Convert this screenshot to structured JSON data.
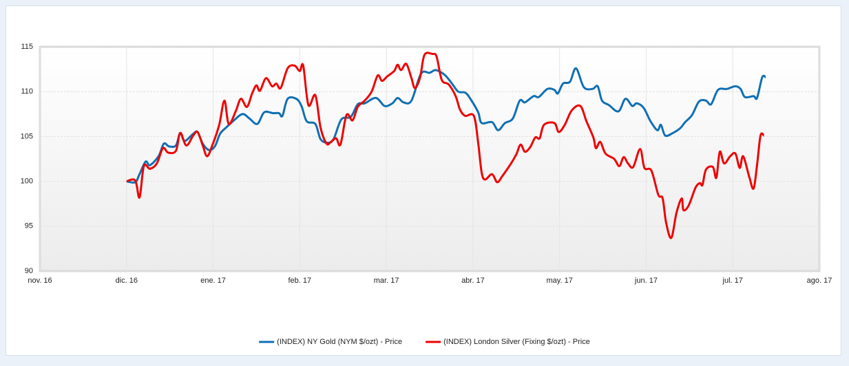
{
  "chart_data": {
    "type": "line",
    "xlim": [
      0,
      9
    ],
    "xticks": [
      {
        "value": 0,
        "label": "nov. 16"
      },
      {
        "value": 1,
        "label": "dic. 16"
      },
      {
        "value": 2,
        "label": "ene. 17"
      },
      {
        "value": 3,
        "label": "feb. 17"
      },
      {
        "value": 4,
        "label": "mar. 17"
      },
      {
        "value": 5,
        "label": "abr. 17"
      },
      {
        "value": 6,
        "label": "may. 17"
      },
      {
        "value": 7,
        "label": "jun. 17"
      },
      {
        "value": 8,
        "label": "jul. 17"
      },
      {
        "value": 9,
        "label": "ago. 17"
      }
    ],
    "ylim": [
      90,
      115
    ],
    "yticks": [
      90,
      95,
      100,
      105,
      110,
      115
    ],
    "grid": true,
    "legend": "bottom",
    "series": [
      {
        "name": "(INDEX) NY Gold (NYM $/ozt) - Price",
        "color": "#0f6fb4",
        "x": [
          1.0,
          1.1,
          1.15,
          1.22,
          1.27,
          1.37,
          1.43,
          1.49,
          1.57,
          1.62,
          1.67,
          1.77,
          1.82,
          1.88,
          1.95,
          2.02,
          2.08,
          2.15,
          2.24,
          2.34,
          2.42,
          2.51,
          2.59,
          2.69,
          2.76,
          2.8,
          2.86,
          2.96,
          3.02,
          3.08,
          3.18,
          3.24,
          3.32,
          3.39,
          3.48,
          3.59,
          3.67,
          3.75,
          3.88,
          3.98,
          4.07,
          4.13,
          4.2,
          4.29,
          4.4,
          4.5,
          4.57,
          4.67,
          4.75,
          4.83,
          4.91,
          4.97,
          5.06,
          5.1,
          5.22,
          5.29,
          5.37,
          5.46,
          5.54,
          5.6,
          5.7,
          5.76,
          5.86,
          5.94,
          5.98,
          6.04,
          6.12,
          6.19,
          6.28,
          6.38,
          6.44,
          6.49,
          6.57,
          6.68,
          6.76,
          6.84,
          6.89,
          6.97,
          7.05,
          7.13,
          7.17,
          7.22,
          7.31,
          7.39,
          7.45,
          7.53,
          7.61,
          7.69,
          7.75,
          7.83,
          7.93,
          8.03,
          8.09,
          8.14,
          8.24,
          8.28,
          8.34,
          8.38
        ],
        "values": [
          100,
          99.9,
          100.8,
          102.2,
          101.8,
          102.8,
          104.2,
          103.9,
          104,
          105.4,
          104.5,
          105.3,
          105.5,
          104.2,
          103.5,
          103.9,
          105.3,
          106,
          106.8,
          107.5,
          107.0,
          106.4,
          107.7,
          107.6,
          107.6,
          107.3,
          109.2,
          109.2,
          108.4,
          106.7,
          106.4,
          104.7,
          104.3,
          104.7,
          106.9,
          107.2,
          108.6,
          108.7,
          109.3,
          108.4,
          108.7,
          109.3,
          108.8,
          109.0,
          112.0,
          112.1,
          112.4,
          111.9,
          111.0,
          110.0,
          109.9,
          109.2,
          107.7,
          106.5,
          106.6,
          105.7,
          106.5,
          107.0,
          109.0,
          108.8,
          109.5,
          109.4,
          110.3,
          110.2,
          109.8,
          110.9,
          111.1,
          112.6,
          110.5,
          110.3,
          110.6,
          109.0,
          108.5,
          107.8,
          109.2,
          108.4,
          108.7,
          108.2,
          106.7,
          105.7,
          106.3,
          105.1,
          105.4,
          105.9,
          106.6,
          107.4,
          108.9,
          109.0,
          108.6,
          110.2,
          110.3,
          110.6,
          110.3,
          109.4,
          109.5,
          109.3,
          111.6,
          111.6
        ]
      },
      {
        "name": "(INDEX) London Silver (Fixing $/ozt) - Price",
        "color": "#ee0000",
        "x": [
          1.0,
          1.1,
          1.15,
          1.2,
          1.27,
          1.35,
          1.42,
          1.48,
          1.57,
          1.62,
          1.69,
          1.77,
          1.82,
          1.88,
          1.93,
          1.99,
          2.07,
          2.13,
          2.18,
          2.26,
          2.32,
          2.39,
          2.45,
          2.5,
          2.54,
          2.61,
          2.68,
          2.73,
          2.78,
          2.86,
          2.94,
          3.0,
          3.04,
          3.1,
          3.18,
          3.24,
          3.31,
          3.36,
          3.42,
          3.47,
          3.54,
          3.61,
          3.67,
          3.75,
          3.83,
          3.9,
          3.95,
          4.01,
          4.09,
          4.13,
          4.17,
          4.23,
          4.29,
          4.33,
          4.39,
          4.44,
          4.53,
          4.58,
          4.64,
          4.72,
          4.8,
          4.85,
          4.91,
          5.01,
          5.06,
          5.1,
          5.14,
          5.22,
          5.28,
          5.34,
          5.44,
          5.5,
          5.55,
          5.6,
          5.66,
          5.72,
          5.77,
          5.82,
          5.94,
          5.99,
          6.06,
          6.14,
          6.24,
          6.31,
          6.39,
          6.42,
          6.47,
          6.53,
          6.63,
          6.69,
          6.74,
          6.79,
          6.85,
          6.93,
          6.98,
          7.06,
          7.14,
          7.19,
          7.23,
          7.29,
          7.35,
          7.41,
          7.43,
          7.49,
          7.57,
          7.62,
          7.65,
          7.69,
          7.77,
          7.81,
          7.85,
          7.9,
          7.97,
          8.03,
          8.08,
          8.12,
          8.19,
          8.24,
          8.28,
          8.32,
          8.36
        ],
        "values": [
          100,
          100.1,
          98.2,
          101.7,
          101.4,
          102,
          103.7,
          103.2,
          103.4,
          105.4,
          104.0,
          105.1,
          105.5,
          104.0,
          102.8,
          104.0,
          106.3,
          109.0,
          106.4,
          107.8,
          109.2,
          108.3,
          109.8,
          110.7,
          110.1,
          111.5,
          110.6,
          110.9,
          110.4,
          112.6,
          112.9,
          112.3,
          112.9,
          108.5,
          109.6,
          106.0,
          104.2,
          104.4,
          104.8,
          104.1,
          107.4,
          106.8,
          108.3,
          109.0,
          110.0,
          111.8,
          111.2,
          111.7,
          112.3,
          113.0,
          112.4,
          113.1,
          111.5,
          110.4,
          111.6,
          114.1,
          114.2,
          113.9,
          111.3,
          110.8,
          109.5,
          108.0,
          107.3,
          107.3,
          104.3,
          101.0,
          100.2,
          100.8,
          99.9,
          100.6,
          102.0,
          103.0,
          104.1,
          103.3,
          103.8,
          104.9,
          104.8,
          106.3,
          106.5,
          105.5,
          106.3,
          107.9,
          108.4,
          106.7,
          104.9,
          103.7,
          104.4,
          103.1,
          102.5,
          101.7,
          102.7,
          102.0,
          101.6,
          103.6,
          101.5,
          101.2,
          98.5,
          98.1,
          95.4,
          93.7,
          96.5,
          98.1,
          96.8,
          97.3,
          99.3,
          99.8,
          99.6,
          101.3,
          101.6,
          100.4,
          103.3,
          102.0,
          102.8,
          103.1,
          101.5,
          102.8,
          100.5,
          99.2,
          101.8,
          105.1,
          105.1
        ]
      }
    ]
  }
}
